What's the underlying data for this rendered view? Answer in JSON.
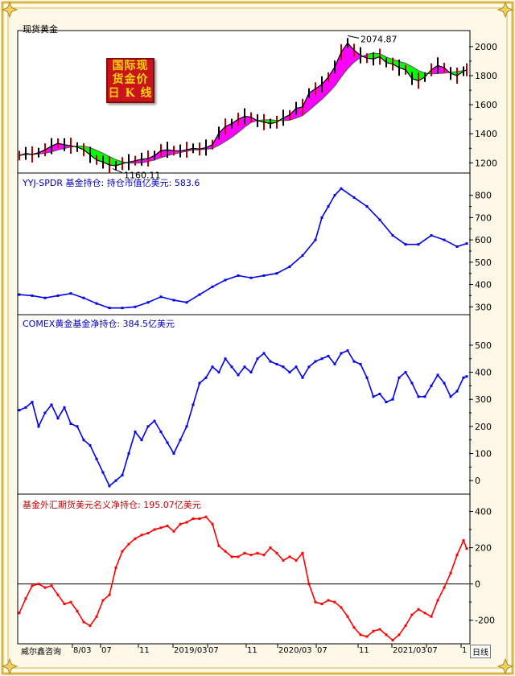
{
  "title": "现货黄金",
  "stamp": {
    "line1": "国际现",
    "line2": "货金价",
    "line3": "日 K 线"
  },
  "gold_high_label": "2074.87",
  "gold_low_label": "1160.11",
  "footer": {
    "brand": "威尔鑫咨询",
    "period_button": "日线"
  },
  "x_labels": [
    "8/03",
    "07",
    "11",
    "2019/03",
    "07",
    "11",
    "2020/03",
    "07",
    "11",
    "2021/03",
    "07",
    "1"
  ],
  "colors": {
    "frame_gold": "#d6b84a",
    "gold_up_fill": "#ff00ff",
    "gold_down_fill": "#00ff00",
    "blue_line": "#0000ee",
    "red_line": "#ff0000"
  },
  "chart_data": [
    {
      "type": "line",
      "panel": "gold",
      "title": "现货黄金",
      "annotations": [
        "2074.87",
        "1160.11"
      ],
      "ylim": [
        1130,
        2110
      ],
      "yticks": [
        1200,
        1400,
        1600,
        1800,
        2000
      ],
      "x": [
        0,
        8,
        16,
        24,
        32,
        40,
        48,
        56,
        64,
        72,
        80,
        88,
        96,
        104,
        112,
        120,
        128,
        136,
        144,
        152,
        160,
        168,
        176,
        184,
        192,
        200,
        208,
        216,
        224,
        232,
        240,
        248,
        256,
        264,
        272,
        280,
        288,
        296,
        304,
        312,
        320,
        328,
        336,
        344,
        352,
        360,
        368,
        376,
        384,
        392,
        400,
        408,
        416,
        424,
        432,
        440,
        448,
        456,
        464,
        472,
        480,
        488,
        496,
        504,
        512,
        520,
        528,
        536,
        544,
        552,
        556
      ],
      "series": [
        {
          "values": [
            1250,
            1265,
            1258,
            1270,
            1290,
            1315,
            1335,
            1325,
            1318,
            1308,
            1290,
            1255,
            1220,
            1205,
            1185,
            1180,
            1195,
            1205,
            1215,
            1225,
            1230,
            1250,
            1285,
            1290,
            1284,
            1282,
            1290,
            1300,
            1295,
            1305,
            1325,
            1405,
            1450,
            1470,
            1500,
            1520,
            1515,
            1490,
            1480,
            1470,
            1480,
            1510,
            1530,
            1575,
            1585,
            1680,
            1710,
            1740,
            1790,
            1860,
            1960,
            2025,
            1975,
            1940,
            1920,
            1915,
            1930,
            1890,
            1880,
            1855,
            1840,
            1780,
            1765,
            1790,
            1840,
            1870,
            1855,
            1815,
            1800,
            1830,
            1840
          ]
        }
      ]
    },
    {
      "type": "line",
      "panel": "spdr",
      "title": "YYJ-SPDR 基金持仓: 持仓市值亿美元: 583.6",
      "ylim": [
        265,
        860
      ],
      "yticks": [
        300,
        400,
        500,
        600,
        700,
        800
      ],
      "x": [
        0,
        16,
        32,
        48,
        64,
        80,
        96,
        112,
        128,
        144,
        160,
        176,
        192,
        208,
        224,
        240,
        256,
        272,
        288,
        304,
        320,
        336,
        352,
        368,
        376,
        384,
        392,
        400,
        416,
        432,
        448,
        464,
        480,
        496,
        512,
        528,
        544,
        556
      ],
      "series": [
        {
          "values": [
            355,
            350,
            340,
            350,
            360,
            340,
            315,
            295,
            295,
            300,
            320,
            345,
            330,
            320,
            355,
            390,
            420,
            440,
            430,
            440,
            450,
            480,
            530,
            600,
            700,
            750,
            800,
            830,
            790,
            750,
            690,
            620,
            580,
            580,
            620,
            600,
            570,
            583.6
          ]
        }
      ]
    },
    {
      "type": "line",
      "panel": "comex",
      "title": "COMEX黄金基金净持仓: 384.5亿美元",
      "ylim": [
        -50,
        580
      ],
      "yticks": [
        0,
        100,
        200,
        300,
        400,
        500
      ],
      "x": [
        0,
        8,
        16,
        24,
        32,
        40,
        48,
        56,
        64,
        72,
        80,
        88,
        96,
        104,
        112,
        120,
        128,
        136,
        144,
        152,
        160,
        168,
        176,
        184,
        192,
        200,
        208,
        216,
        224,
        232,
        240,
        248,
        256,
        264,
        272,
        280,
        288,
        296,
        304,
        312,
        320,
        328,
        336,
        344,
        352,
        360,
        368,
        376,
        384,
        392,
        400,
        408,
        416,
        424,
        432,
        440,
        448,
        456,
        464,
        472,
        480,
        488,
        496,
        504,
        512,
        520,
        528,
        536,
        544,
        552,
        556
      ],
      "series": [
        {
          "values": [
            260,
            270,
            290,
            200,
            250,
            280,
            230,
            270,
            210,
            200,
            150,
            130,
            80,
            30,
            -20,
            0,
            20,
            100,
            180,
            150,
            200,
            220,
            180,
            140,
            100,
            150,
            200,
            280,
            360,
            380,
            420,
            400,
            450,
            420,
            390,
            420,
            400,
            450,
            470,
            440,
            430,
            420,
            400,
            420,
            380,
            420,
            440,
            450,
            460,
            430,
            470,
            480,
            440,
            430,
            380,
            310,
            320,
            290,
            300,
            380,
            400,
            360,
            310,
            310,
            350,
            390,
            360,
            310,
            330,
            380,
            384.5
          ]
        }
      ]
    },
    {
      "type": "line",
      "panel": "fx",
      "title": "基金外汇期货美元名义净持仓: 195.07亿美元",
      "ylim": [
        -330,
        460
      ],
      "yticks": [
        -200,
        0,
        200,
        400
      ],
      "x": [
        0,
        8,
        16,
        24,
        32,
        40,
        48,
        56,
        64,
        72,
        80,
        88,
        96,
        104,
        112,
        120,
        128,
        136,
        144,
        152,
        160,
        168,
        176,
        184,
        192,
        200,
        208,
        216,
        224,
        232,
        240,
        248,
        256,
        264,
        272,
        280,
        288,
        296,
        304,
        312,
        320,
        328,
        336,
        344,
        352,
        360,
        368,
        376,
        384,
        392,
        400,
        408,
        416,
        424,
        432,
        440,
        448,
        456,
        464,
        472,
        480,
        488,
        496,
        504,
        512,
        520,
        528,
        536,
        544,
        552,
        556
      ],
      "series": [
        {
          "values": [
            -160,
            -80,
            -10,
            0,
            -20,
            -10,
            -60,
            -110,
            -100,
            -150,
            -210,
            -230,
            -180,
            -90,
            -60,
            90,
            180,
            220,
            250,
            270,
            280,
            300,
            310,
            320,
            290,
            330,
            340,
            360,
            360,
            370,
            330,
            210,
            180,
            150,
            150,
            170,
            160,
            170,
            160,
            200,
            170,
            130,
            150,
            130,
            170,
            0,
            -100,
            -110,
            -90,
            -100,
            -130,
            -180,
            -240,
            -280,
            -290,
            -260,
            -250,
            -280,
            -310,
            -280,
            -230,
            -170,
            -140,
            -160,
            -180,
            -90,
            -20,
            60,
            160,
            240,
            195.07
          ]
        }
      ]
    }
  ]
}
